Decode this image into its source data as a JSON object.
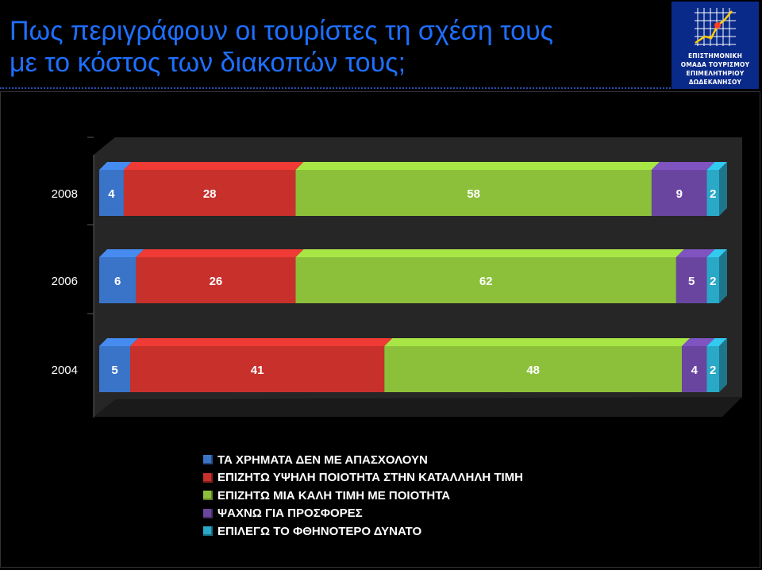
{
  "title": {
    "line1": "Πως περιγράφουν οι τουρίστες τη σχέση τους",
    "line2": "με το κόστος των διακοπών τους;"
  },
  "logo": {
    "icon": "growth-chart-icon",
    "lines": [
      "ΕΠΙΣΤΗΜΟΝΙΚΗ",
      "ΟΜΑΔΑ ΤΟΥΡΙΣΜΟΥ",
      "ΕΠΙΜΕΛΗΤΗΡΙΟΥ",
      "ΔΩΔΕΚΑΝΗΣΟΥ"
    ]
  },
  "chart_data": {
    "type": "bar",
    "orientation": "horizontal",
    "stacked": true,
    "categories": [
      "2008",
      "2006",
      "2004"
    ],
    "series": [
      {
        "name": "ΤΑ ΧΡΗΜΑΤΑ ΔΕΝ ΜΕ ΑΠΑΣΧΟΛΟΥΝ",
        "values": [
          4,
          6,
          5
        ],
        "color": "#3a74c8"
      },
      {
        "name": "ΕΠΙΖΗΤΩ ΥΨΗΛΗ ΠΟΙΟΤΗΤΑ ΣΤΗΝ ΚΑΤΑΛΛΗΛΗ ΤΙΜΗ",
        "values": [
          28,
          26,
          41
        ],
        "color": "#c8302c"
      },
      {
        "name": "ΕΠΙΖΗΤΩ ΜΙΑ ΚΑΛΗ ΤΙΜΗ ΜΕ ΠΟΙΟΤΗΤΑ",
        "values": [
          58,
          62,
          48
        ],
        "color": "#8cc03a"
      },
      {
        "name": "ΨΑΧΝΩ ΓΙΑ ΠΡΟΣΦΟΡΕΣ",
        "values": [
          9,
          5,
          4
        ],
        "color": "#6a45a0"
      },
      {
        "name": "ΕΠΙΛΕΓΩ ΤΟ ΦΘΗΝΟΤΕΡΟ ΔΥΝΑΤΟ",
        "values": [
          2,
          2,
          2
        ],
        "color": "#2aa8c8"
      }
    ],
    "data_labels": true,
    "legend_position": "bottom",
    "grid": false
  }
}
